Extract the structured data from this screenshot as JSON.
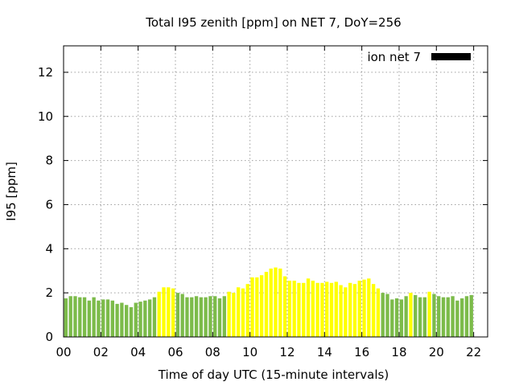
{
  "chart_data": {
    "type": "bar",
    "title": "Total I95 zenith [ppm] on NET 7, DoY=256",
    "xlabel": "Time of day UTC (15-minute intervals)",
    "ylabel": "I95 [ppm]",
    "xlim": [
      0,
      22.75
    ],
    "ylim": [
      0,
      13.2
    ],
    "x_ticks": [
      "00",
      "02",
      "04",
      "06",
      "08",
      "10",
      "12",
      "14",
      "16",
      "18",
      "20",
      "22"
    ],
    "x_tick_values": [
      0,
      2,
      4,
      6,
      8,
      10,
      12,
      14,
      16,
      18,
      20,
      22
    ],
    "y_ticks": [
      "0",
      "2",
      "4",
      "6",
      "8",
      "10",
      "12"
    ],
    "y_tick_values": [
      0,
      2,
      4,
      6,
      8,
      10,
      12
    ],
    "grid": true,
    "legend_position": "top-right",
    "interval_hours": 0.25,
    "colors": {
      "green": "#7cbb4a",
      "yellow": "#ffff00",
      "legend": "#000000"
    },
    "series": [
      {
        "name": "ion net 7",
        "values": [
          1.75,
          1.85,
          1.85,
          1.8,
          1.8,
          1.65,
          1.8,
          1.65,
          1.7,
          1.7,
          1.65,
          1.5,
          1.55,
          1.45,
          1.35,
          1.55,
          1.6,
          1.65,
          1.7,
          1.8,
          2.05,
          2.25,
          2.25,
          2.2,
          2.0,
          1.95,
          1.8,
          1.8,
          1.85,
          1.8,
          1.8,
          1.85,
          1.85,
          1.75,
          1.85,
          2.05,
          2.0,
          2.25,
          2.2,
          2.4,
          2.7,
          2.7,
          2.8,
          2.95,
          3.1,
          3.15,
          3.1,
          2.75,
          2.55,
          2.55,
          2.45,
          2.45,
          2.65,
          2.55,
          2.45,
          2.45,
          2.5,
          2.45,
          2.5,
          2.35,
          2.25,
          2.45,
          2.4,
          2.55,
          2.6,
          2.65,
          2.4,
          2.2,
          2.0,
          1.95,
          1.7,
          1.75,
          1.7,
          1.85,
          2.0,
          1.9,
          1.8,
          1.8,
          2.05,
          1.95,
          1.85,
          1.8,
          1.8,
          1.85,
          1.65,
          1.75,
          1.85,
          1.9
        ],
        "colors": [
          "green",
          "green",
          "green",
          "green",
          "green",
          "green",
          "green",
          "green",
          "green",
          "green",
          "green",
          "green",
          "green",
          "green",
          "green",
          "green",
          "green",
          "green",
          "green",
          "green",
          "yellow",
          "yellow",
          "yellow",
          "yellow",
          "green",
          "green",
          "green",
          "green",
          "green",
          "green",
          "green",
          "green",
          "green",
          "green",
          "green",
          "yellow",
          "yellow",
          "yellow",
          "yellow",
          "yellow",
          "yellow",
          "yellow",
          "yellow",
          "yellow",
          "yellow",
          "yellow",
          "yellow",
          "yellow",
          "yellow",
          "yellow",
          "yellow",
          "yellow",
          "yellow",
          "yellow",
          "yellow",
          "yellow",
          "yellow",
          "yellow",
          "yellow",
          "yellow",
          "yellow",
          "yellow",
          "yellow",
          "yellow",
          "yellow",
          "yellow",
          "yellow",
          "yellow",
          "green",
          "green",
          "green",
          "green",
          "green",
          "green",
          "yellow",
          "green",
          "green",
          "green",
          "yellow",
          "green",
          "green",
          "green",
          "green",
          "green",
          "green",
          "green",
          "green",
          "green"
        ]
      }
    ]
  }
}
